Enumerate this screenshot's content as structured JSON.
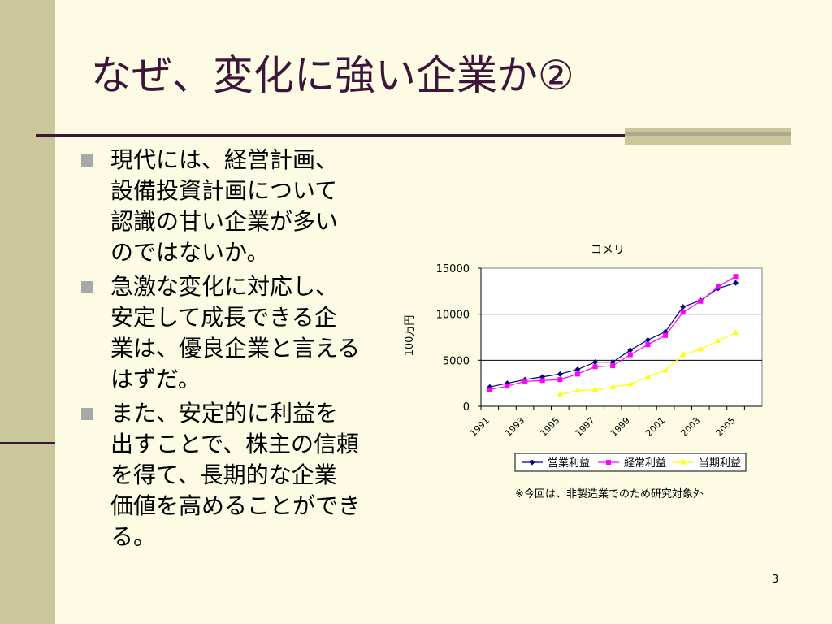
{
  "slide": {
    "title": "なぜ、変化に強い企業か②",
    "page_number": "3"
  },
  "bullets": [
    {
      "text": "現代には、経営計画、\n設備投資計画について\n認識の甘い企業が多い\nのではないか。"
    },
    {
      "text": "急激な変化に対応し、\n安定して成長できる企\n業は、優良企業と言える\nはずだ。"
    },
    {
      "text": "また、安定的に利益を\n出すことで、株主の信頼\nを得て、長期的な企業\n価値を高めることができ\nる。"
    }
  ],
  "chart_note": "※今回は、非製造業でのため研究対象外",
  "chart_data": {
    "type": "line",
    "title": "コメリ",
    "ylabel": "100万円",
    "xlabel": "",
    "ylim": [
      0,
      15000
    ],
    "yticks": [
      0,
      5000,
      10000,
      15000
    ],
    "x": [
      1991,
      1992,
      1993,
      1994,
      1995,
      1996,
      1997,
      1998,
      1999,
      2000,
      2001,
      2002,
      2003,
      2004,
      2005,
      2006
    ],
    "xtick_labels": [
      "1991",
      "1993",
      "1995",
      "1997",
      "1999",
      "2001",
      "2003",
      "2005"
    ],
    "grid": true,
    "legend_position": "bottom",
    "series": [
      {
        "name": "営業利益",
        "color": "#000080",
        "marker": "diamond",
        "values": [
          2100,
          2500,
          2900,
          3200,
          3500,
          4000,
          4800,
          4800,
          6100,
          7200,
          8100,
          10800,
          11500,
          12800,
          13400,
          null
        ]
      },
      {
        "name": "経常利益",
        "color": "#ff00ff",
        "marker": "square",
        "values": [
          1800,
          2200,
          2700,
          2800,
          2900,
          3500,
          4300,
          4400,
          5600,
          6700,
          7700,
          10200,
          11400,
          13000,
          14100,
          null
        ]
      },
      {
        "name": "当期利益",
        "color": "#ffff00",
        "marker": "triangle",
        "values": [
          null,
          null,
          null,
          null,
          1300,
          1700,
          1800,
          2100,
          2400,
          3200,
          3900,
          5600,
          6200,
          7100,
          8000,
          null
        ]
      }
    ]
  }
}
